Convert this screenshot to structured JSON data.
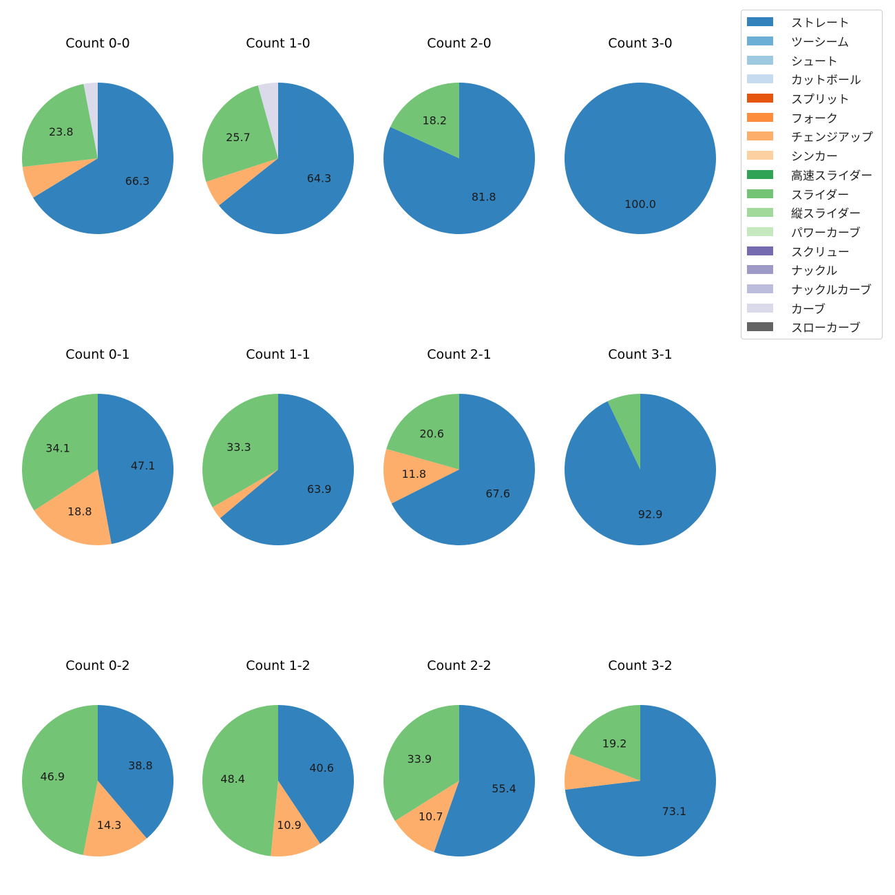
{
  "chart_data": {
    "type": "pie",
    "legend_position": "top-right",
    "legend": [
      {
        "name": "ストレート",
        "color": "#3182bd"
      },
      {
        "name": "ツーシーム",
        "color": "#6baed6"
      },
      {
        "name": "シュート",
        "color": "#9ecae1"
      },
      {
        "name": "カットボール",
        "color": "#c6dbef"
      },
      {
        "name": "スプリット",
        "color": "#e6550d"
      },
      {
        "name": "フォーク",
        "color": "#fd8d3c"
      },
      {
        "name": "チェンジアップ",
        "color": "#fdae6b"
      },
      {
        "name": "シンカー",
        "color": "#fdd0a2"
      },
      {
        "name": "高速スライダー",
        "color": "#31a354"
      },
      {
        "name": "スライダー",
        "color": "#74c476"
      },
      {
        "name": "縦スライダー",
        "color": "#a1d99b"
      },
      {
        "name": "パワーカーブ",
        "color": "#c7e9c0"
      },
      {
        "name": "スクリュー",
        "color": "#756bb1"
      },
      {
        "name": "ナックル",
        "color": "#9e9ac8"
      },
      {
        "name": "ナックルカーブ",
        "color": "#bcbddc"
      },
      {
        "name": "カーブ",
        "color": "#dadaeb"
      },
      {
        "name": "スローカーブ",
        "color": "#636363"
      }
    ],
    "charts": [
      {
        "title": "Count 0-0",
        "slices": [
          {
            "pitch": "ストレート",
            "value": 66.3,
            "label": "66.3"
          },
          {
            "pitch": "チェンジアップ",
            "value": 6.9,
            "label": ""
          },
          {
            "pitch": "スライダー",
            "value": 23.8,
            "label": "23.8"
          },
          {
            "pitch": "カーブ",
            "value": 3.0,
            "label": ""
          }
        ]
      },
      {
        "title": "Count 1-0",
        "slices": [
          {
            "pitch": "ストレート",
            "value": 64.3,
            "label": "64.3"
          },
          {
            "pitch": "チェンジアップ",
            "value": 5.7,
            "label": ""
          },
          {
            "pitch": "スライダー",
            "value": 25.7,
            "label": "25.7"
          },
          {
            "pitch": "カーブ",
            "value": 4.3,
            "label": ""
          }
        ]
      },
      {
        "title": "Count 2-0",
        "slices": [
          {
            "pitch": "ストレート",
            "value": 81.8,
            "label": "81.8"
          },
          {
            "pitch": "スライダー",
            "value": 18.2,
            "label": "18.2"
          }
        ]
      },
      {
        "title": "Count 3-0",
        "slices": [
          {
            "pitch": "ストレート",
            "value": 100.0,
            "label": "100.0"
          }
        ]
      },
      {
        "title": "Count 0-1",
        "slices": [
          {
            "pitch": "ストレート",
            "value": 47.1,
            "label": "47.1"
          },
          {
            "pitch": "チェンジアップ",
            "value": 18.8,
            "label": "18.8"
          },
          {
            "pitch": "スライダー",
            "value": 34.1,
            "label": "34.1"
          }
        ]
      },
      {
        "title": "Count 1-1",
        "slices": [
          {
            "pitch": "ストレート",
            "value": 63.9,
            "label": "63.9"
          },
          {
            "pitch": "チェンジアップ",
            "value": 2.8,
            "label": ""
          },
          {
            "pitch": "スライダー",
            "value": 33.3,
            "label": "33.3"
          }
        ]
      },
      {
        "title": "Count 2-1",
        "slices": [
          {
            "pitch": "ストレート",
            "value": 67.6,
            "label": "67.6"
          },
          {
            "pitch": "チェンジアップ",
            "value": 11.8,
            "label": "11.8"
          },
          {
            "pitch": "スライダー",
            "value": 20.6,
            "label": "20.6"
          }
        ]
      },
      {
        "title": "Count 3-1",
        "slices": [
          {
            "pitch": "ストレート",
            "value": 92.9,
            "label": "92.9"
          },
          {
            "pitch": "スライダー",
            "value": 7.1,
            "label": ""
          }
        ]
      },
      {
        "title": "Count 0-2",
        "slices": [
          {
            "pitch": "ストレート",
            "value": 38.8,
            "label": "38.8"
          },
          {
            "pitch": "チェンジアップ",
            "value": 14.3,
            "label": "14.3"
          },
          {
            "pitch": "スライダー",
            "value": 46.9,
            "label": "46.9"
          }
        ]
      },
      {
        "title": "Count 1-2",
        "slices": [
          {
            "pitch": "ストレート",
            "value": 40.6,
            "label": "40.6"
          },
          {
            "pitch": "チェンジアップ",
            "value": 10.9,
            "label": "10.9"
          },
          {
            "pitch": "スライダー",
            "value": 48.4,
            "label": "48.4"
          }
        ]
      },
      {
        "title": "Count 2-2",
        "slices": [
          {
            "pitch": "ストレート",
            "value": 55.4,
            "label": "55.4"
          },
          {
            "pitch": "チェンジアップ",
            "value": 10.7,
            "label": "10.7"
          },
          {
            "pitch": "スライダー",
            "value": 33.9,
            "label": "33.9"
          }
        ]
      },
      {
        "title": "Count 3-2",
        "slices": [
          {
            "pitch": "ストレート",
            "value": 73.1,
            "label": "73.1"
          },
          {
            "pitch": "チェンジアップ",
            "value": 7.7,
            "label": ""
          },
          {
            "pitch": "スライダー",
            "value": 19.2,
            "label": "19.2"
          }
        ]
      }
    ]
  }
}
